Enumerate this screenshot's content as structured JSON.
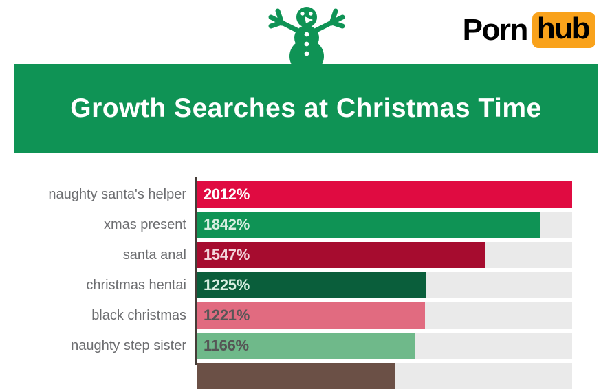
{
  "header": {
    "snowman_icon": "snowman",
    "snowman_color": "#0f9355",
    "logo": {
      "text_black": "Porn",
      "text_boxed": "hub",
      "box_color": "#f9a21b",
      "text_color": "#000000"
    }
  },
  "banner": {
    "title": "Growth Searches at Christmas Time",
    "bg_color": "#0f9355",
    "text_color": "#ffffff"
  },
  "chart_data": {
    "type": "bar",
    "orientation": "horizontal",
    "title": "Growth Searches at Christmas Time",
    "unit": "% growth",
    "xlim": [
      0,
      2012
    ],
    "max_value": 2012,
    "grid": false,
    "legend": false,
    "categories": [
      "naughty santa's helper",
      "xmas present",
      "santa anal",
      "christmas hentai",
      "black christmas",
      "naughty step sister"
    ],
    "values": [
      2012,
      1842,
      1547,
      1225,
      1221,
      1166
    ],
    "value_labels": [
      "2012%",
      "1842%",
      "1547%",
      "1225%",
      "1221%",
      "1166%"
    ],
    "bar_colors": [
      "#e00b41",
      "#0f9355",
      "#a60c2f",
      "#0a5e3b",
      "#e16b80",
      "#6fb98a"
    ],
    "value_text_colors": [
      "#ffffff",
      "#d8eee1",
      "#f4d6dc",
      "#d8eee1",
      "#565656",
      "#565656"
    ],
    "track_color": "#eaeaea",
    "axis_color": "#453d38",
    "category_label_color": "#6c6d70",
    "partial_row": {
      "note": "seventh bar cut off at bottom edge of image",
      "width_fraction": 0.528,
      "color": "#6b5046"
    }
  }
}
